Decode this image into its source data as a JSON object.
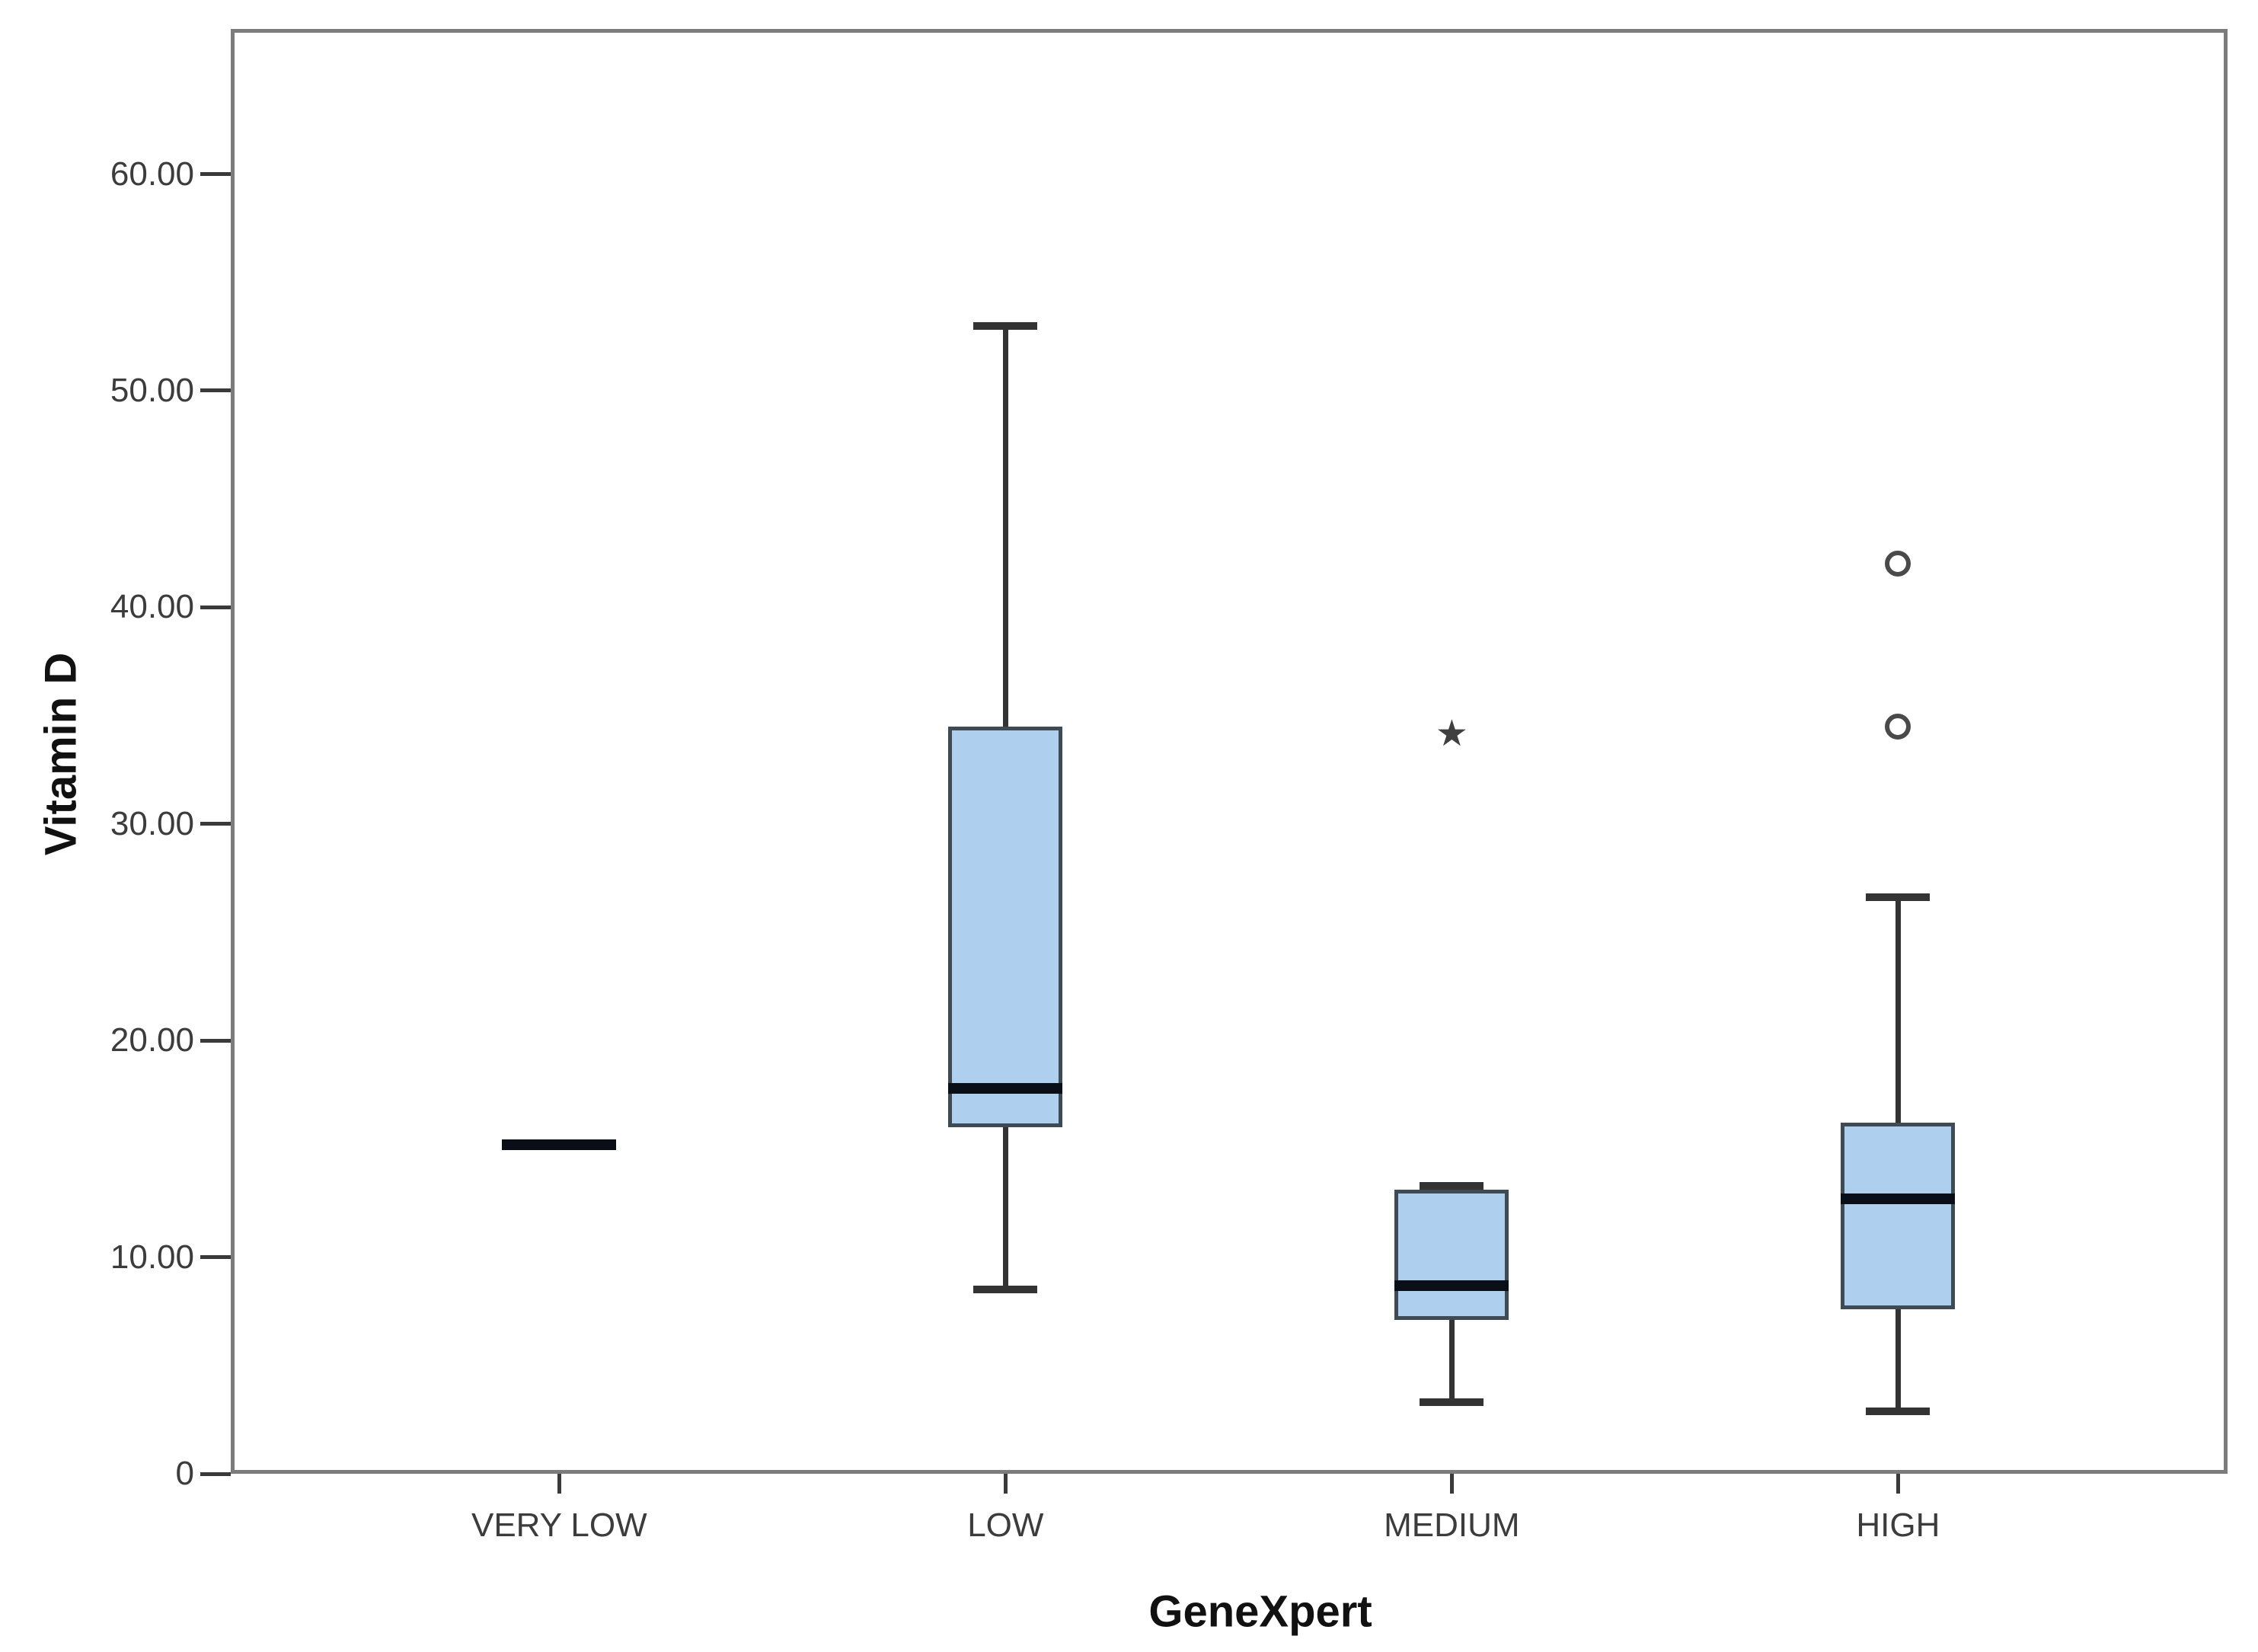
{
  "figure": {
    "background": "#ffffff"
  },
  "chart_data": {
    "type": "box",
    "title": "",
    "xlabel": "GeneXpert",
    "ylabel": "Vitamin D",
    "ylim": [
      0,
      66.7
    ],
    "grid": false,
    "legend": null,
    "yticks": [
      {
        "value": 0,
        "label": "0"
      },
      {
        "value": 10,
        "label": "10.00"
      },
      {
        "value": 20,
        "label": "20.00"
      },
      {
        "value": 30,
        "label": "30.00"
      },
      {
        "value": 40,
        "label": "40.00"
      },
      {
        "value": 50,
        "label": "50.00"
      },
      {
        "value": 60,
        "label": "60.00"
      }
    ],
    "categories": [
      "VERY LOW",
      "LOW",
      "MEDIUM",
      "HIGH"
    ],
    "groups": [
      {
        "category": "VERY LOW",
        "single_value": 15.2,
        "outliers": [],
        "extremes": []
      },
      {
        "category": "LOW",
        "whisker_low": 8.5,
        "q1": 16.0,
        "median": 17.8,
        "q3": 34.5,
        "whisker_high": 53.0,
        "outliers": [],
        "extremes": []
      },
      {
        "category": "MEDIUM",
        "whisker_low": 3.3,
        "q1": 7.1,
        "median": 8.7,
        "q3": 13.1,
        "whisker_high": 13.3,
        "outliers": [],
        "extremes": [
          34.0
        ]
      },
      {
        "category": "HIGH",
        "whisker_low": 2.9,
        "q1": 7.6,
        "median": 12.7,
        "q3": 16.2,
        "whisker_high": 26.6,
        "outliers": [
          34.5,
          42.0
        ],
        "extremes": []
      }
    ],
    "markers": {
      "outlier": "circle",
      "extreme": "★"
    }
  },
  "style": {
    "box_fill": "#aed0ee",
    "box_border": "#3e4a54",
    "median_color": "#0a0e17",
    "whisker_color": "#333333",
    "frame_color": "#7c7c7c",
    "tick_color": "#3a3a3a",
    "label_color": "#3c3c3c",
    "title_color": "#111111",
    "outlier_color": "#4a4a4a",
    "extreme_color": "#3f3f3f"
  }
}
